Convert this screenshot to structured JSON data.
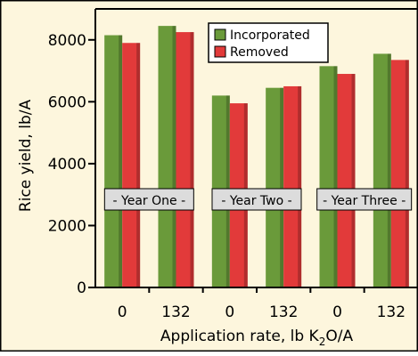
{
  "chart_data": {
    "type": "bar",
    "x_tick_labels": [
      "0",
      "132",
      "0",
      "132",
      "0",
      "132"
    ],
    "groups": [
      "- Year One -",
      "- Year Two -",
      "- Year Three -"
    ],
    "series": [
      {
        "name": "Incorporated",
        "color": "#6a9a3a",
        "values": [
          8150,
          8450,
          6200,
          6450,
          7150,
          7550
        ]
      },
      {
        "name": "Removed",
        "color": "#e23a3a",
        "values": [
          7900,
          8250,
          5950,
          6500,
          6900,
          7350
        ]
      }
    ],
    "ylabel": "Rice yield, lb/A",
    "xlabel_main": "Application rate, lb K",
    "xlabel_sub": "2",
    "xlabel_tail": "O/A",
    "ylim": [
      0,
      9000
    ],
    "yticks": [
      0,
      2000,
      4000,
      6000,
      8000
    ],
    "legend_position": "top-right",
    "grid": false,
    "background": "#fdf6dd"
  }
}
